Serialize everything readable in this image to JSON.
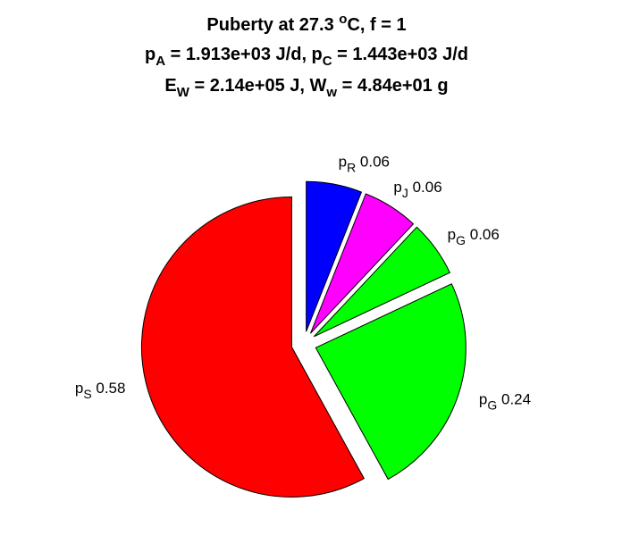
{
  "chart_data": {
    "type": "pie",
    "title_lines": [
      "Puberty at 27.3 °C, f = 1",
      "p_A = 1.913e+03 J/d,  p_C = 1.443e+03 J/d",
      "E_W = 2.14e+05 J, W_w = 4.84e+01 g"
    ],
    "slices": [
      {
        "label_main": "p",
        "label_sub": "R",
        "value": 0.06,
        "value_text": "0.06",
        "color": "#0000ff"
      },
      {
        "label_main": "p",
        "label_sub": "J",
        "value": 0.06,
        "value_text": "0.06",
        "color": "#ff00ff"
      },
      {
        "label_main": "p",
        "label_sub": "G",
        "value": 0.06,
        "value_text": "0.06",
        "color": "#00ff00"
      },
      {
        "label_main": "p",
        "label_sub": "G",
        "value": 0.24,
        "value_text": "0.24",
        "color": "#00ff00"
      },
      {
        "label_main": "p",
        "label_sub": "S",
        "value": 0.58,
        "value_text": "0.58",
        "color": "#ff0000"
      }
    ],
    "exploded": true,
    "legend": "none"
  }
}
